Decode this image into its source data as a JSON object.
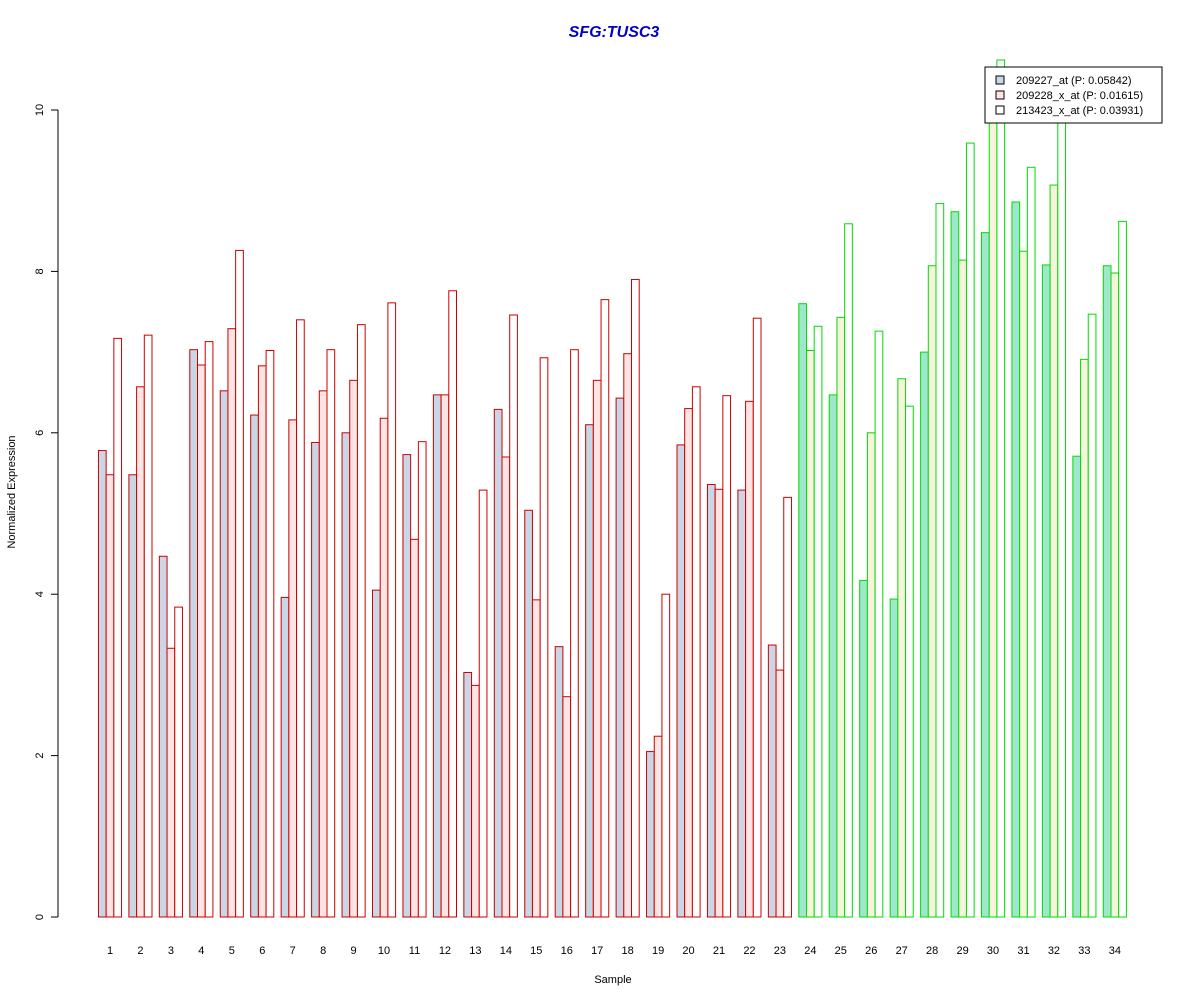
{
  "chart_data": {
    "type": "bar",
    "title": "SFG:TUSC3",
    "xlabel": "Sample",
    "ylabel": "Normalized Expression",
    "ylim": [
      0,
      10
    ],
    "yticks": [
      0,
      2,
      4,
      6,
      8,
      10
    ],
    "legend_position": "top-right",
    "categories": [
      "1",
      "2",
      "3",
      "4",
      "5",
      "6",
      "7",
      "8",
      "9",
      "10",
      "11",
      "12",
      "13",
      "14",
      "15",
      "16",
      "17",
      "18",
      "19",
      "20",
      "21",
      "22",
      "23",
      "24",
      "25",
      "26",
      "27",
      "28",
      "29",
      "30",
      "31",
      "32",
      "33",
      "34"
    ],
    "groups": {
      "group1": {
        "samples": "1-23",
        "border_color": "#cc0000"
      },
      "group2": {
        "samples": "24-34",
        "border_color": "#00dd00"
      }
    },
    "series": [
      {
        "name": "209227_at (P: 0.05842)",
        "fill_color_group1": "#c8d6e6",
        "fill_color_group2": "#9ee6cc",
        "values": [
          5.78,
          5.48,
          4.47,
          7.03,
          6.52,
          6.22,
          3.96,
          5.88,
          6.0,
          4.05,
          5.73,
          6.47,
          3.03,
          6.29,
          5.04,
          3.35,
          6.1,
          6.43,
          2.05,
          5.85,
          5.36,
          5.29,
          3.37,
          7.6,
          6.47,
          4.17,
          3.94,
          7.0,
          8.74,
          8.48,
          8.86,
          8.08,
          5.71,
          8.07
        ]
      },
      {
        "name": "209228_x_at (P: 0.01615)",
        "fill_color_group1": "#ffe4e4",
        "fill_color_group2": "#f6f4da",
        "values": [
          5.48,
          6.57,
          3.33,
          6.84,
          7.29,
          6.83,
          6.16,
          6.52,
          6.65,
          6.18,
          4.68,
          6.47,
          2.87,
          5.7,
          3.93,
          2.73,
          6.65,
          6.98,
          2.24,
          6.3,
          5.3,
          6.39,
          3.06,
          7.02,
          7.43,
          6.0,
          6.67,
          8.07,
          8.14,
          10.0,
          8.25,
          9.07,
          6.91,
          7.98
        ]
      },
      {
        "name": "213423_x_at (P: 0.03931)",
        "fill_color_group1": "#ffffff",
        "fill_color_group2": "#ffffff",
        "values": [
          7.17,
          7.21,
          3.84,
          7.13,
          8.26,
          7.02,
          7.4,
          7.03,
          7.34,
          7.61,
          5.89,
          7.76,
          5.29,
          7.46,
          6.93,
          7.03,
          7.65,
          7.9,
          4.0,
          6.57,
          6.46,
          7.42,
          5.2,
          7.32,
          8.59,
          7.26,
          6.33,
          8.84,
          9.59,
          10.62,
          9.29,
          9.96,
          7.47,
          8.62
        ]
      }
    ],
    "title_color": "#0000cc",
    "legend_swatch_colors": [
      "#c8d6e6",
      "#ffe4e4",
      "#ffffff"
    ]
  }
}
